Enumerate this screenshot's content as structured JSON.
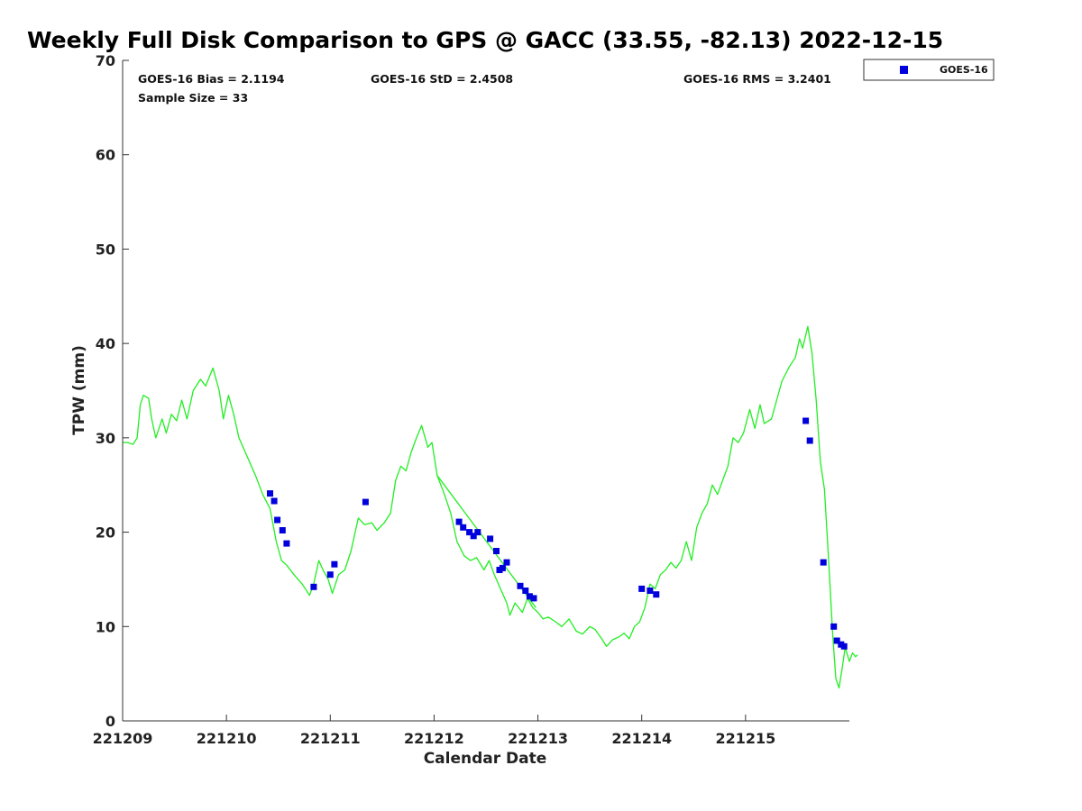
{
  "chart_data": {
    "type": "scatter",
    "title": "Weekly Full Disk Comparison to GPS @ GACC (33.55, -82.13) 2022-12-15",
    "xlabel": "Calendar Date",
    "ylabel": "TPW (mm)",
    "xlim": [
      0,
      7
    ],
    "ylim": [
      0,
      70
    ],
    "x_ticks": [
      {
        "x": 0,
        "label": "221209"
      },
      {
        "x": 1,
        "label": "221210"
      },
      {
        "x": 2,
        "label": "221211"
      },
      {
        "x": 3,
        "label": "221212"
      },
      {
        "x": 4,
        "label": "221213"
      },
      {
        "x": 5,
        "label": "221214"
      },
      {
        "x": 6,
        "label": "221215"
      }
    ],
    "y_ticks": [
      0,
      10,
      20,
      30,
      40,
      50,
      60,
      70
    ],
    "stats": {
      "bias": "GOES-16 Bias = 2.1194",
      "std": "GOES-16 StD = 2.4508",
      "rms": "GOES-16 RMS = 3.2401",
      "sample": "Sample Size = 33"
    },
    "legend": {
      "position": "top-right",
      "entries": [
        {
          "name": "GOES-16",
          "color": "#0000dd"
        }
      ]
    },
    "series": [
      {
        "name": "GPS",
        "kind": "line",
        "color": "#22ee22",
        "points": [
          [
            0.0,
            29.5
          ],
          [
            0.05,
            29.5
          ],
          [
            0.1,
            29.3
          ],
          [
            0.14,
            30.0
          ],
          [
            0.17,
            33.5
          ],
          [
            0.2,
            34.5
          ],
          [
            0.25,
            34.2
          ],
          [
            0.28,
            32.0
          ],
          [
            0.32,
            30.0
          ],
          [
            0.38,
            32.0
          ],
          [
            0.42,
            30.5
          ],
          [
            0.47,
            32.5
          ],
          [
            0.52,
            31.8
          ],
          [
            0.57,
            34.0
          ],
          [
            0.62,
            32.0
          ],
          [
            0.68,
            35.0
          ],
          [
            0.75,
            36.2
          ],
          [
            0.8,
            35.5
          ],
          [
            0.87,
            37.4
          ],
          [
            0.93,
            35.0
          ],
          [
            0.97,
            32.0
          ],
          [
            1.02,
            34.5
          ],
          [
            1.07,
            32.5
          ],
          [
            1.12,
            30.0
          ],
          [
            1.2,
            28.0
          ],
          [
            1.28,
            26.0
          ],
          [
            1.35,
            24.0
          ],
          [
            1.42,
            22.5
          ],
          [
            1.48,
            19.0
          ],
          [
            1.53,
            17.0
          ],
          [
            1.58,
            16.5
          ],
          [
            1.65,
            15.5
          ],
          [
            1.73,
            14.5
          ],
          [
            1.8,
            13.3
          ],
          [
            1.84,
            14.5
          ],
          [
            1.89,
            17.0
          ],
          [
            1.93,
            16.0
          ],
          [
            1.98,
            15.0
          ],
          [
            2.02,
            13.5
          ],
          [
            2.08,
            15.5
          ],
          [
            2.14,
            16.0
          ],
          [
            2.2,
            18.0
          ],
          [
            2.27,
            21.5
          ],
          [
            2.33,
            20.8
          ],
          [
            2.4,
            21.0
          ],
          [
            2.45,
            20.2
          ],
          [
            2.52,
            21.0
          ],
          [
            2.58,
            22.0
          ],
          [
            2.63,
            25.5
          ],
          [
            2.68,
            27.0
          ],
          [
            2.73,
            26.5
          ],
          [
            2.78,
            28.5
          ],
          [
            2.83,
            30.0
          ],
          [
            2.88,
            31.3
          ],
          [
            2.94,
            29.0
          ],
          [
            2.98,
            29.5
          ],
          [
            3.03,
            26.0
          ],
          [
            3.1,
            24.0
          ],
          [
            3.16,
            22.0
          ],
          [
            3.22,
            19.0
          ],
          [
            3.29,
            17.5
          ],
          [
            3.35,
            17.0
          ],
          [
            3.41,
            17.3
          ],
          [
            3.48,
            16.0
          ],
          [
            3.53,
            17.0
          ],
          [
            3.58,
            15.5
          ],
          [
            3.64,
            14.0
          ],
          [
            3.7,
            12.5
          ],
          [
            3.73,
            11.2
          ],
          [
            3.78,
            12.5
          ],
          [
            3.85,
            11.5
          ],
          [
            3.9,
            13.0
          ],
          [
            3.95,
            12.0
          ],
          [
            4.0,
            11.5
          ],
          [
            4.05,
            10.8
          ],
          [
            4.1,
            11.0
          ],
          [
            4.17,
            10.5
          ],
          [
            4.23,
            10.0
          ],
          [
            4.3,
            10.8
          ],
          [
            4.37,
            9.5
          ],
          [
            4.43,
            9.2
          ],
          [
            4.5,
            10.0
          ],
          [
            4.55,
            9.7
          ],
          [
            4.62,
            8.6
          ],
          [
            4.66,
            7.9
          ],
          [
            4.72,
            8.6
          ],
          [
            4.78,
            8.9
          ],
          [
            4.83,
            9.3
          ],
          [
            4.88,
            8.7
          ],
          [
            4.93,
            10.0
          ],
          [
            4.98,
            10.5
          ],
          [
            5.03,
            12.0
          ],
          [
            5.08,
            14.5
          ],
          [
            5.13,
            14.0
          ],
          [
            5.18,
            15.5
          ],
          [
            5.23,
            16.0
          ],
          [
            5.28,
            16.8
          ],
          [
            5.33,
            16.2
          ],
          [
            5.38,
            17.0
          ],
          [
            5.43,
            19.0
          ],
          [
            5.48,
            17.0
          ],
          [
            5.53,
            20.5
          ],
          [
            5.58,
            22.0
          ],
          [
            5.63,
            23.0
          ],
          [
            5.68,
            25.0
          ],
          [
            5.73,
            24.0
          ],
          [
            5.78,
            25.5
          ],
          [
            5.83,
            27.0
          ],
          [
            5.88,
            30.0
          ],
          [
            5.93,
            29.5
          ],
          [
            5.98,
            30.5
          ],
          [
            6.04,
            33.0
          ],
          [
            6.09,
            31.0
          ],
          [
            6.14,
            33.5
          ],
          [
            6.18,
            31.5
          ],
          [
            6.25,
            32.0
          ],
          [
            6.3,
            34.0
          ],
          [
            6.35,
            36.0
          ],
          [
            6.42,
            37.5
          ],
          [
            6.48,
            38.5
          ],
          [
            6.52,
            40.5
          ],
          [
            6.55,
            39.5
          ],
          [
            6.6,
            41.8
          ],
          [
            6.64,
            39.0
          ],
          [
            6.68,
            34.0
          ],
          [
            6.72,
            27.5
          ],
          [
            6.76,
            24.5
          ],
          [
            6.8,
            17.0
          ],
          [
            6.84,
            9.0
          ],
          [
            6.87,
            4.5
          ],
          [
            6.9,
            3.5
          ],
          [
            6.93,
            5.5
          ],
          [
            6.96,
            7.8
          ],
          [
            7.0,
            6.3
          ],
          [
            7.03,
            7.2
          ],
          [
            7.06,
            6.8
          ],
          [
            7.08,
            7.0
          ]
        ]
      },
      {
        "name": "GPS (straight segment)",
        "kind": "line",
        "color": "#22ee22",
        "points": [
          [
            3.03,
            26.0
          ],
          [
            3.98,
            12.0
          ]
        ]
      },
      {
        "name": "GOES-16",
        "kind": "points",
        "color": "#0000dd",
        "points": [
          [
            1.42,
            24.1
          ],
          [
            1.46,
            23.3
          ],
          [
            1.49,
            21.3
          ],
          [
            1.54,
            20.2
          ],
          [
            1.58,
            18.8
          ],
          [
            1.84,
            14.2
          ],
          [
            2.0,
            15.5
          ],
          [
            2.04,
            16.6
          ],
          [
            2.34,
            23.2
          ],
          [
            3.24,
            21.1
          ],
          [
            3.28,
            20.5
          ],
          [
            3.34,
            20.0
          ],
          [
            3.38,
            19.6
          ],
          [
            3.42,
            20.0
          ],
          [
            3.54,
            19.3
          ],
          [
            3.6,
            18.0
          ],
          [
            3.63,
            16.0
          ],
          [
            3.66,
            16.2
          ],
          [
            3.7,
            16.8
          ],
          [
            3.83,
            14.3
          ],
          [
            3.88,
            13.8
          ],
          [
            3.92,
            13.2
          ],
          [
            3.96,
            13.0
          ],
          [
            5.0,
            14.0
          ],
          [
            5.08,
            13.8
          ],
          [
            5.14,
            13.4
          ],
          [
            6.58,
            31.8
          ],
          [
            6.62,
            29.7
          ],
          [
            6.75,
            16.8
          ],
          [
            6.85,
            10.0
          ],
          [
            6.88,
            8.5
          ],
          [
            6.92,
            8.1
          ],
          [
            6.95,
            7.9
          ]
        ]
      }
    ]
  }
}
